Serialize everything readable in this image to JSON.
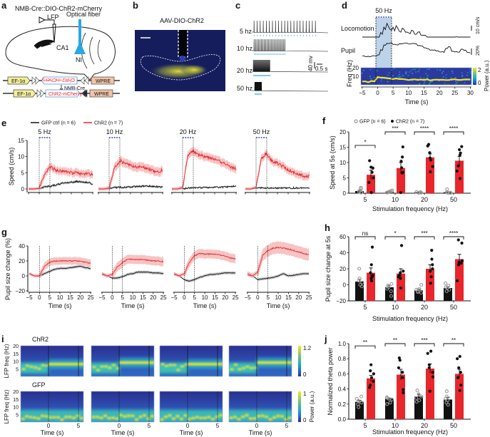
{
  "panel_labels": {
    "a": "a",
    "b": "b",
    "c": "c",
    "d": "d",
    "e": "e",
    "f": "f",
    "g": "g",
    "h": "h",
    "i": "i",
    "j": "j"
  },
  "colors": {
    "chr2": "#e8262b",
    "chr2_band": "#f4a9a9",
    "gfp": "#111111",
    "gfp_band": "#bdbdbd",
    "gfp_point": "#9a9a9a",
    "stim": "#2b3a9e",
    "fiber": "#2aa9e0",
    "shade": "#bcd3ea"
  },
  "panel_a": {
    "title": "NMB-Cre::DIO-ChR2-mCherry",
    "lfp": "LFP",
    "fiber": "Optical fiber",
    "ca1": "CA1",
    "ni": "NI",
    "promoter": "EF-1α",
    "insert": "ChR2-mCherry",
    "wpre": "WPRE",
    "cre": "NMB-Cre"
  },
  "panel_b": {
    "title": "AAV-DIO-ChR2"
  },
  "panel_c": {
    "traces": [
      {
        "label": "5 hz",
        "freq_hz": 5
      },
      {
        "label": "10 hz",
        "freq_hz": 10
      },
      {
        "label": "20 hz",
        "freq_hz": 20
      },
      {
        "label": "50 hz",
        "freq_hz": 50
      }
    ],
    "scale_voltage": "40 mv",
    "scale_time": "0.5 s"
  },
  "panel_d": {
    "stim_label": "50 Hz",
    "locomotion_label": "Locomotion",
    "pupil_label": "Pupil",
    "loco_scale": "10 cm/s",
    "pupil_scale": "20%",
    "ylabel": "Freq (Hz)",
    "yticks": [
      "20",
      "10"
    ],
    "xticks": [
      "−5",
      "0",
      "5",
      "10",
      "15",
      "20",
      "25",
      "30"
    ],
    "xlabel": "Time (s)",
    "cbar_ticks": [
      "2",
      "0"
    ],
    "cbar_label": "Power (a.u.)",
    "time_s": [
      -5,
      -4,
      -3,
      -2,
      -1,
      0,
      1,
      2,
      3,
      4,
      5,
      6,
      7,
      8,
      9,
      10,
      11,
      12,
      13,
      14,
      15,
      16,
      17,
      18,
      19,
      20,
      21,
      22,
      23,
      24,
      25,
      26,
      27,
      28,
      29,
      30
    ],
    "locomotion_cm_s": [
      0,
      0,
      0,
      0,
      0,
      0,
      8,
      20,
      28,
      18,
      22,
      25,
      12,
      20,
      10,
      8,
      15,
      6,
      12,
      5,
      4,
      0,
      0,
      0,
      0,
      0,
      0,
      0,
      0,
      0,
      0.5,
      0,
      0,
      0.5,
      0,
      0
    ],
    "pupil_pct": [
      -2,
      -5,
      -5,
      -4,
      -3,
      0,
      15,
      30,
      35,
      38,
      33,
      32,
      34,
      35,
      36,
      33,
      35,
      34,
      30,
      28,
      22,
      18,
      16,
      15,
      12,
      10,
      9,
      20,
      25,
      12,
      10,
      8,
      18,
      15,
      8,
      5
    ],
    "theta_freq_hz": [
      4,
      4,
      3,
      5,
      4,
      9,
      8.5,
      8,
      8,
      7.5,
      7,
      7,
      6.5,
      6.5,
      6,
      6,
      6,
      6,
      6,
      6,
      6,
      6,
      5.5,
      6,
      6,
      6,
      6,
      5.5,
      6,
      6,
      6,
      6,
      6,
      6,
      6,
      6
    ]
  },
  "chart_data": [
    {
      "panel": "e",
      "type": "line",
      "ylabel": "Speed (cm/s)",
      "ylim": [
        0,
        15
      ],
      "yticks": [
        "0",
        "5",
        "10",
        "15"
      ],
      "xlim": [
        -5,
        25
      ],
      "stim_window_s": [
        0,
        5
      ],
      "legend": [
        "GFP ctrl (n = 6)",
        "ChR2 (n = 7)"
      ],
      "x": [
        -5,
        -2.5,
        0,
        2.5,
        5,
        7.5,
        10,
        12.5,
        15,
        17.5,
        20,
        22.5,
        25
      ],
      "subplots": [
        {
          "title": "5 Hz",
          "series": [
            {
              "name": "GFP ctrl",
              "values": [
                0,
                0,
                0.1,
                0.6,
                0.8,
                1.2,
                1.6,
                1.9,
                2.1,
                2.3,
                2.2,
                2.0,
                1.6
              ],
              "sem": 0.4
            },
            {
              "name": "ChR2",
              "values": [
                0,
                0,
                0.2,
                4.5,
                6.8,
                6.0,
                5.5,
                5.3,
                5.0,
                5.0,
                4.8,
                4.6,
                4.5
              ],
              "sem": 1.2
            }
          ]
        },
        {
          "title": "10 Hz",
          "series": [
            {
              "name": "GFP ctrl",
              "values": [
                0,
                0,
                0.1,
                0.4,
                0.5,
                0.5,
                0.6,
                0.7,
                0.8,
                0.9,
                0.8,
                0.7,
                0.6
              ],
              "sem": 0.3
            },
            {
              "name": "ChR2",
              "values": [
                0,
                0,
                0.3,
                6.5,
                8.8,
                7.8,
                7.3,
                6.8,
                7.0,
                6.4,
                5.8,
                5.2,
                6.0
              ],
              "sem": 1.4
            }
          ]
        },
        {
          "title": "20 Hz",
          "series": [
            {
              "name": "GFP ctrl",
              "values": [
                0,
                0,
                0.1,
                0.3,
                0.3,
                0.4,
                0.4,
                0.5,
                0.5,
                0.5,
                0.6,
                0.7,
                0.9
              ],
              "sem": 0.2
            },
            {
              "name": "ChR2",
              "values": [
                0,
                0,
                0.5,
                10.5,
                11.8,
                10.5,
                10.0,
                9.5,
                9.2,
                8.5,
                7.5,
                6.8,
                6.3
              ],
              "sem": 1.3
            }
          ]
        },
        {
          "title": "50 Hz",
          "series": [
            {
              "name": "GFP ctrl",
              "values": [
                0,
                0,
                0.2,
                0.3,
                0.3,
                0.3,
                0.3,
                0.3,
                0.3,
                0.3,
                0.3,
                0.3,
                0.3
              ],
              "sem": 0.2
            },
            {
              "name": "ChR2",
              "values": [
                0,
                0,
                0.5,
                9.5,
                11.0,
                8.5,
                8.0,
                7.0,
                6.0,
                5.2,
                4.5,
                4.0,
                3.8
              ],
              "sem": 1.2
            }
          ]
        }
      ]
    },
    {
      "panel": "f",
      "type": "bar",
      "ylabel": "Speed at 5s (cm/s)",
      "xlabel": "Stimulation frequency (Hz)",
      "ylim": [
        0,
        20
      ],
      "yticks": [
        "0",
        "5",
        "10",
        "15",
        "20"
      ],
      "ytick_values": [
        0,
        5,
        10,
        15,
        20
      ],
      "categories": [
        "5",
        "10",
        "20",
        "50"
      ],
      "legend": [
        "GFP (n = 6)",
        "ChR2 (n = 7)"
      ],
      "significance": [
        "*",
        "***",
        "****",
        "****"
      ],
      "series": [
        {
          "name": "GFP",
          "values": [
            0.7,
            0.5,
            0.3,
            0.3
          ],
          "sem": [
            0.3,
            0.2,
            0.1,
            0.2
          ],
          "points": [
            [
              1.8,
              1.5,
              0.8,
              0.5,
              0.3,
              0.2
            ],
            [
              0.9,
              0.7,
              0.6,
              0.4,
              0.3,
              0.2
            ],
            [
              0.4,
              0.3,
              0.3,
              0.2,
              0.2,
              0.1
            ],
            [
              1.3,
              0.4,
              0.2,
              0.1,
              0.1,
              0.1
            ]
          ]
        },
        {
          "name": "ChR2",
          "values": [
            6.0,
            8.2,
            11.7,
            10.6
          ],
          "sem": [
            1.5,
            1.8,
            1.1,
            1.4
          ],
          "points": [
            [
              10.6,
              8.5,
              8.2,
              6.8,
              5.0,
              3.5,
              0.2
            ],
            [
              15.1,
              11.8,
              10.4,
              8.3,
              6.8,
              6.6,
              0.2
            ],
            [
              15.9,
              15.4,
              13.2,
              11.5,
              10.8,
              8.7,
              7.0
            ],
            [
              15.2,
              14.2,
              13.1,
              12.4,
              8.9,
              7.2,
              4.8
            ]
          ]
        }
      ]
    },
    {
      "panel": "g",
      "type": "line",
      "ylabel": "Pupil size change (%)",
      "xlabel": "Time (s)",
      "ylim": [
        -20,
        40
      ],
      "yticks": [
        "−20",
        "0",
        "20",
        "40"
      ],
      "xlim": [
        -5,
        25
      ],
      "xticks": [
        "−5",
        "0",
        "5",
        "10",
        "15",
        "20",
        "25"
      ],
      "stim_window_s": [
        0,
        5
      ],
      "x": [
        -5,
        -2.5,
        0,
        2.5,
        5,
        7.5,
        10,
        12.5,
        15,
        17.5,
        20,
        22.5,
        25
      ],
      "subplots": [
        {
          "series": [
            {
              "name": "GFP ctrl",
              "values": [
                3,
                0,
                0,
                3,
                6,
                9,
                10,
                10,
                11,
                12,
                13,
                11,
                10
              ],
              "sem": 2
            },
            {
              "name": "ChR2",
              "values": [
                3,
                0,
                0,
                13,
                18,
                20,
                20,
                20,
                20,
                20,
                20,
                18,
                17
              ],
              "sem": 5
            }
          ]
        },
        {
          "series": [
            {
              "name": "GFP ctrl",
              "values": [
                2,
                0,
                -3,
                -3,
                -1,
                2,
                3,
                5,
                5,
                5,
                4,
                4,
                3
              ],
              "sem": 2
            },
            {
              "name": "ChR2",
              "values": [
                3,
                0,
                2,
                12,
                18,
                22,
                22,
                22,
                22,
                21,
                20,
                20,
                19
              ],
              "sem": 6
            }
          ]
        },
        {
          "series": [
            {
              "name": "GFP ctrl",
              "values": [
                2,
                0,
                -5,
                -7,
                -5,
                -2,
                0,
                2,
                2,
                3,
                4,
                4,
                4
              ],
              "sem": 2
            },
            {
              "name": "ChR2",
              "values": [
                3,
                0,
                3,
                18,
                27,
                30,
                29,
                29,
                29,
                28,
                26,
                24,
                23
              ],
              "sem": 6
            }
          ]
        },
        {
          "series": [
            {
              "name": "GFP ctrl",
              "values": [
                1,
                0,
                -5,
                -4,
                -3,
                -2,
                0,
                3,
                0,
                1,
                2,
                3,
                3
              ],
              "sem": 2
            },
            {
              "name": "ChR2",
              "values": [
                3,
                0,
                5,
                28,
                34,
                37,
                38,
                37,
                36,
                34,
                32,
                30,
                28
              ],
              "sem": 8
            }
          ]
        }
      ]
    },
    {
      "panel": "h",
      "type": "bar",
      "ylabel": "Pupil size change at 5s",
      "xlabel": "Stimulation frequency (Hz)",
      "ylim": [
        -20,
        60
      ],
      "yticks": [
        "−20",
        "0",
        "20",
        "40",
        "60"
      ],
      "ytick_values": [
        -20,
        0,
        20,
        40,
        60
      ],
      "categories": [
        "5",
        "10",
        "20",
        "50"
      ],
      "significance": [
        "ns",
        "*",
        "***",
        "****"
      ],
      "series": [
        {
          "name": "GFP",
          "values": [
            4,
            -3,
            -7,
            -4
          ],
          "sem": [
            3,
            2.5,
            1.5,
            1.8
          ],
          "points": [
            [
              20,
              8,
              5,
              3,
              0,
              -2
            ],
            [
              1,
              -1,
              -3,
              -5,
              -8,
              -14
            ],
            [
              0,
              -5,
              -6,
              -8,
              -9,
              -10
            ],
            [
              2,
              -1,
              -3,
              -4,
              -6,
              -8
            ]
          ]
        },
        {
          "name": "ChR2",
          "values": [
            15,
            14,
            20,
            32
          ],
          "sem": [
            6,
            6,
            5,
            6
          ],
          "points": [
            [
              47,
              25,
              15,
              12,
              10,
              8,
              5
            ],
            [
              49,
              17,
              15,
              12,
              10,
              8,
              -4
            ],
            [
              43,
              32,
              25,
              20,
              17,
              10,
              2
            ],
            [
              56,
              52,
              30,
              28,
              27,
              25,
              5
            ]
          ]
        }
      ]
    },
    {
      "panel": "i",
      "type": "heatmap",
      "ylabel": "LFP freq (Hz)",
      "yticks": [
        "20",
        "15",
        "10",
        "5"
      ],
      "xticks": [
        "0",
        "5"
      ],
      "xlabel": "Time (s)",
      "cbar_label": "Power (a.u.)",
      "rows": [
        {
          "label": "ChR2",
          "cbar_ticks": [
            "1.2",
            "0"
          ],
          "pre_band_hz": [
            6,
            6,
            6,
            6
          ],
          "post_band_hz": [
            8,
            9,
            8,
            9
          ]
        },
        {
          "label": "GFP",
          "cbar_ticks": [
            "1",
            "0"
          ],
          "pre_band_hz": [
            3,
            3,
            3,
            3
          ],
          "post_band_hz": [
            3,
            3,
            3,
            3
          ]
        }
      ]
    },
    {
      "panel": "j",
      "type": "bar",
      "ylabel": "Normalized theta power",
      "xlabel": "Stimulation frequency (Hz)",
      "ylim": [
        0,
        1
      ],
      "yticks": [
        "0.0",
        "0.2",
        "0.4",
        "0.6",
        "0.8",
        "1.0"
      ],
      "ytick_values": [
        0,
        0.2,
        0.4,
        0.6,
        0.8,
        1.0
      ],
      "categories": [
        "5",
        "10",
        "20",
        "50"
      ],
      "significance": [
        "**",
        "**",
        "***",
        "**"
      ],
      "series": [
        {
          "name": "GFP",
          "values": [
            0.23,
            0.27,
            0.3,
            0.26
          ],
          "sem": [
            0.02,
            0.01,
            0.03,
            0.03
          ],
          "points": [
            [
              0.3,
              0.27,
              0.24,
              0.22,
              0.2,
              0.16
            ],
            [
              0.29,
              0.28,
              0.27,
              0.26,
              0.22,
              0.2
            ],
            [
              0.38,
              0.33,
              0.3,
              0.28,
              0.25,
              0.23
            ],
            [
              0.37,
              0.3,
              0.27,
              0.25,
              0.22,
              0.19
            ]
          ]
        },
        {
          "name": "ChR2",
          "values": [
            0.54,
            0.59,
            0.67,
            0.6
          ],
          "sem": [
            0.04,
            0.07,
            0.06,
            0.06
          ],
          "points": [
            [
              0.72,
              0.64,
              0.6,
              0.55,
              0.5,
              0.45,
              0.42
            ],
            [
              0.81,
              0.78,
              0.68,
              0.62,
              0.55,
              0.39,
              0.35
            ],
            [
              0.9,
              0.87,
              0.72,
              0.68,
              0.62,
              0.56,
              0.37
            ],
            [
              0.83,
              0.8,
              0.68,
              0.62,
              0.55,
              0.45,
              0.38
            ]
          ]
        }
      ]
    }
  ]
}
